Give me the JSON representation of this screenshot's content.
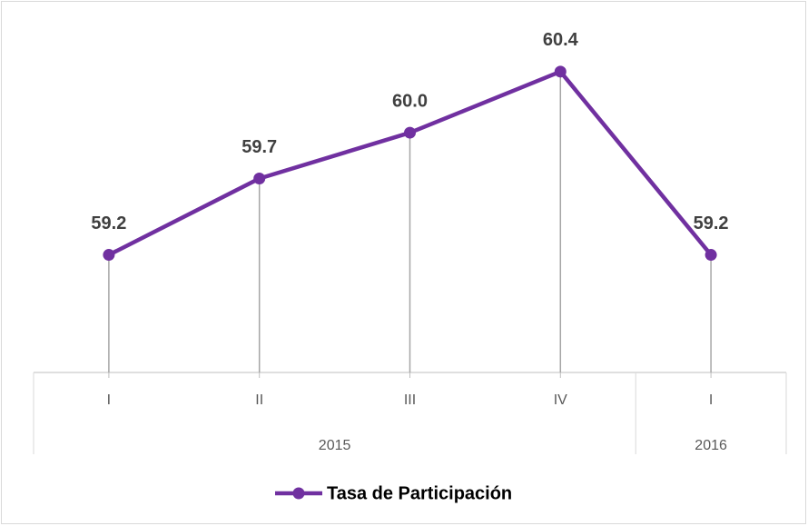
{
  "chart_data": {
    "type": "line",
    "category_groups": [
      {
        "label": "2015",
        "categories": [
          "I",
          "II",
          "III",
          "IV"
        ]
      },
      {
        "label": "2016",
        "categories": [
          "I"
        ]
      }
    ],
    "series": [
      {
        "name": "Tasa de Participación",
        "color": "#7030a0",
        "values": [
          59.2,
          59.7,
          60.0,
          60.4,
          59.2
        ],
        "value_labels": [
          "59.2",
          "59.7",
          "60.0",
          "60.4",
          "59.2"
        ]
      }
    ],
    "ylim": [
      58.43,
      60.75
    ],
    "drop_lines": true,
    "legend": "bottom"
  }
}
